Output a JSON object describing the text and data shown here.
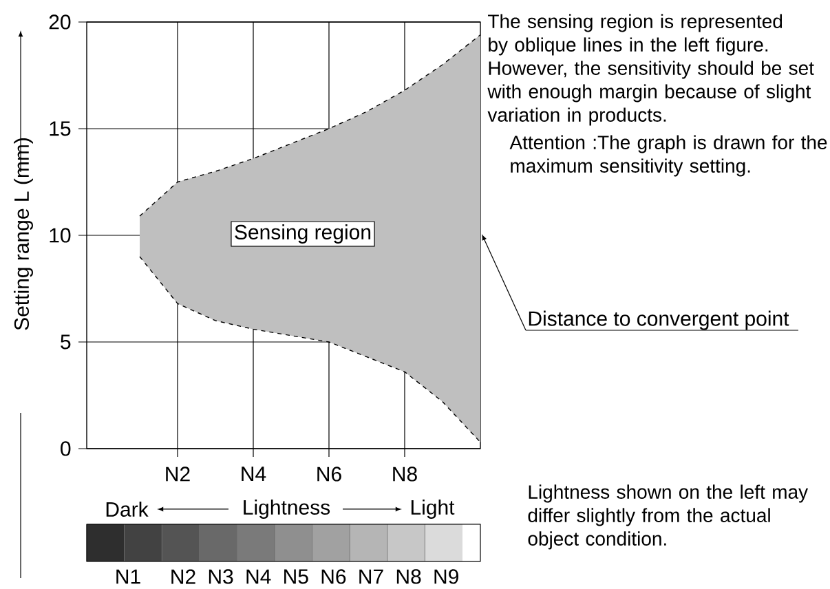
{
  "chart_data": {
    "type": "line",
    "xlabel": "Lightness",
    "ylabel": "Setting range L (mm)",
    "categories": [
      null,
      "N2",
      null,
      "N4",
      null,
      "N6",
      null,
      "N8",
      null,
      null
    ],
    "series": [
      {
        "type": "line",
        "color": "#000000",
        "line_style": "dashed",
        "values": [
          10.9,
          12.5,
          13.0,
          13.6,
          14.3,
          15.0,
          15.8,
          16.8,
          18.0,
          19.4
        ],
        "upper": [
          10.9,
          12.5,
          13.0,
          13.6,
          14.3,
          15.0,
          15.8,
          16.8,
          18.0,
          19.4
        ],
        "lower": [
          9.0,
          6.8,
          6.0,
          5.6,
          5.3,
          5.0,
          4.3,
          3.6,
          2.2,
          0.3
        ]
      },
      {
        "color": "#000000",
        "line_style": "dashed",
        "values": [
          9.0,
          6.8,
          6.0,
          5.6,
          5.3,
          5.0,
          4.3,
          3.6,
          2.2,
          0.3
        ]
      }
    ],
    "ylim": [
      0,
      20
    ],
    "yticks": [
      0,
      5,
      10,
      15,
      20
    ],
    "grid": true,
    "annotations": [
      "Sensing region",
      "Distance to convergent point",
      "The sensing region is represented by oblique lines in the left figure. However, the sensitivity should be set with enough margin because of slight variation in products.",
      "Attention :The graph is drawn for the maximum sensitivity setting.",
      "Lightness shown on the left may differ slightly from the actual object condition.",
      "Dark",
      "Light",
      "N1",
      "N2",
      "N3",
      "N4",
      "N5",
      "N6",
      "N7",
      "N8",
      "N9"
    ]
  }
}
